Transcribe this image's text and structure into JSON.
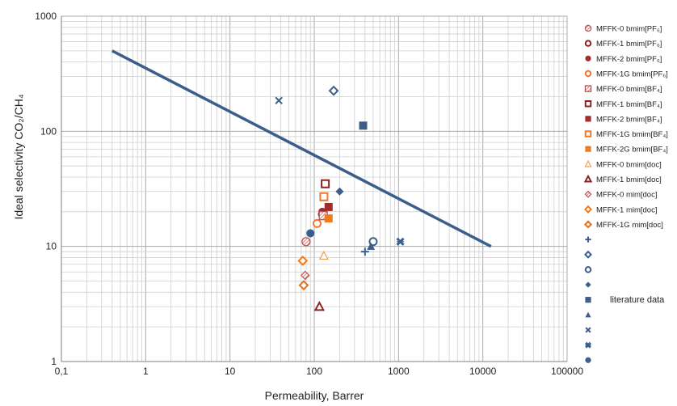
{
  "chart_data": {
    "type": "scatter",
    "title": "",
    "xlabel": "Permeability, Barrer",
    "ylabel": "Ideal selectivity CO₂/CH₄",
    "x_scale": "log",
    "y_scale": "log",
    "xlim": [
      0.1,
      100000
    ],
    "ylim": [
      1,
      1000
    ],
    "x_ticks": [
      0.1,
      1,
      10,
      100,
      1000,
      10000,
      100000
    ],
    "x_tick_labels": [
      "0,1",
      "1",
      "10",
      "100",
      "1000",
      "10000",
      "100000"
    ],
    "y_ticks": [
      1,
      10,
      100,
      1000
    ],
    "y_tick_labels": [
      "1",
      "10",
      "100",
      "1000"
    ],
    "grid": true,
    "legend_position": "right",
    "upper_bound_line": {
      "x": [
        0.4,
        12500
      ],
      "y": [
        500,
        10
      ],
      "color": "#3B5E8C"
    },
    "series": [
      {
        "name": "MFFK-0 bmim[PF₆]",
        "marker": "hatched-circle",
        "color": "#C0504D",
        "points": [
          [
            80,
            11
          ]
        ]
      },
      {
        "name": "MFFK-1 bmim[PF₆]",
        "marker": "open-circle",
        "color": "#8B2323",
        "points": [
          [
            125,
            19
          ]
        ]
      },
      {
        "name": "MFFK-2 bmim[PF₆]",
        "marker": "filled-circle",
        "color": "#A52A2A",
        "points": [
          [
            125,
            20
          ]
        ]
      },
      {
        "name": "MFFK-1G bmim[PF₆]",
        "marker": "open-circle",
        "color": "#F0782A",
        "points": [
          [
            108,
            15.8
          ]
        ]
      },
      {
        "name": "MFFK-0 bmim[BF₄]",
        "marker": "hatched-square",
        "color": "#C0504D",
        "points": [
          [
            128,
            18.5
          ]
        ]
      },
      {
        "name": "MFFK-1 bmim[BF₄]",
        "marker": "open-square",
        "color": "#8B2323",
        "points": [
          [
            135,
            35
          ]
        ]
      },
      {
        "name": "MFFK-2 bmim[BF₄]",
        "marker": "filled-square",
        "color": "#A52A2A",
        "points": [
          [
            148,
            22
          ]
        ]
      },
      {
        "name": "MFFK-1G bmim[BF₄]",
        "marker": "open-square",
        "color": "#F0782A",
        "points": [
          [
            130,
            27
          ]
        ]
      },
      {
        "name": "MFFK-2G bmim[BF₄]",
        "marker": "filled-square",
        "color": "#F07A1E",
        "points": [
          [
            148,
            17.5
          ]
        ]
      },
      {
        "name": "MFFK-0 bmim[doc]",
        "marker": "open-triangle-thin",
        "color": "#F0A050",
        "points": [
          [
            130,
            8.3
          ]
        ]
      },
      {
        "name": "MFFK-1 bmim[doc]",
        "marker": "open-triangle",
        "color": "#8B2323",
        "points": [
          [
            115,
            3
          ]
        ]
      },
      {
        "name": "MFFK-0 mim[doc]",
        "marker": "hatched-diamond",
        "color": "#C0504D",
        "points": [
          [
            78,
            5.6
          ]
        ]
      },
      {
        "name": "MFFK-1 mim[doc]",
        "marker": "open-diamond",
        "color": "#F07A1E",
        "points": [
          [
            73,
            7.5
          ]
        ]
      },
      {
        "name": "MFFK-1G mim[doc]",
        "marker": "open-diamond",
        "color": "#E07020",
        "points": [
          [
            75,
            4.6
          ]
        ]
      },
      {
        "name": "",
        "marker": "plus",
        "color": "#3B5E8C",
        "points": [
          [
            400,
            9
          ]
        ]
      },
      {
        "name": "",
        "marker": "open-diamond",
        "color": "#3B5E8C",
        "points": [
          [
            170,
            225
          ]
        ]
      },
      {
        "name": "",
        "marker": "open-circle",
        "color": "#3B5E8C",
        "points": [
          [
            500,
            11
          ]
        ]
      },
      {
        "name": "",
        "marker": "filled-diamond",
        "color": "#3B5E8C",
        "points": [
          [
            200,
            30
          ]
        ]
      },
      {
        "name": "literature data",
        "marker": "filled-square",
        "color": "#3B5E8C",
        "points": [
          [
            380,
            112
          ]
        ]
      },
      {
        "name": "",
        "marker": "filled-triangle",
        "color": "#3B5E8C",
        "points": [
          [
            470,
            10
          ]
        ]
      },
      {
        "name": "",
        "marker": "x",
        "color": "#3B5E8C",
        "points": [
          [
            38,
            185
          ]
        ]
      },
      {
        "name": "",
        "marker": "bold-x",
        "color": "#3B5E8C",
        "points": [
          [
            1050,
            11
          ]
        ]
      },
      {
        "name": "",
        "marker": "filled-circle",
        "color": "#3B5E8C",
        "points": [
          [
            90,
            13
          ]
        ]
      }
    ]
  }
}
